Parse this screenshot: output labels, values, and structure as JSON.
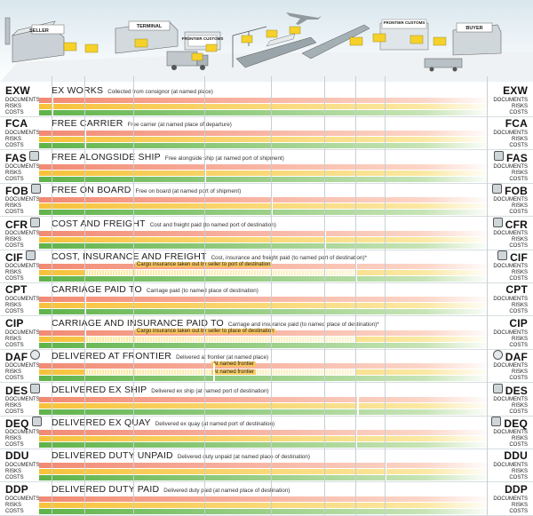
{
  "scene": {
    "seller_label": "SELLER",
    "terminal_label": "TERMINAL",
    "frontier_customs_left": "FRONTIER CUSTOMS",
    "frontier_customs_right": "FRONTIER CUSTOMS",
    "buyer_label": "BUYER"
  },
  "row_labels": {
    "documents": "DOCUMENTS",
    "risks": "RISKS",
    "costs": "COSTS"
  },
  "colors": {
    "documents": "#f28a73",
    "risks": "#f7c23a",
    "costs": "#5fb34a",
    "box": "#f6d12a"
  },
  "terms": [
    {
      "code": "EXW",
      "name": "EX WORKS",
      "desc": "Collected from consignor (at named place)",
      "badge": "",
      "note": ""
    },
    {
      "code": "FCA",
      "name": "FREE CARRIER",
      "desc": "Free carrier (at named place of departure)",
      "badge": "",
      "note": ""
    },
    {
      "code": "FAS",
      "name": "FREE ALONGSIDE SHIP",
      "desc": "Free alongside ship (at named port of shipment)",
      "badge": "sea",
      "note": ""
    },
    {
      "code": "FOB",
      "name": "FREE ON BOARD",
      "desc": "Free on board (at named port of shipment)",
      "badge": "sea",
      "note": ""
    },
    {
      "code": "CFR",
      "name": "COST AND FREIGHT",
      "desc": "Cost and freight paid (to named port of destination)",
      "badge": "sea",
      "note": ""
    },
    {
      "code": "CIF",
      "name": "COST, INSURANCE AND FREIGHT",
      "desc": "Cost, insurance and freight paid (to named port of destination)*",
      "badge": "sea",
      "note": "Cargo insurance taken out by seller to port of destination"
    },
    {
      "code": "CPT",
      "name": "CARRIAGE PAID TO",
      "desc": "Carriage paid (to named place of destination)",
      "badge": "",
      "note": ""
    },
    {
      "code": "CIP",
      "name": "CARRIAGE AND INSURANCE PAID TO",
      "desc": "Carriage and insurance paid (to named place of destination)*",
      "badge": "",
      "note": "Cargo insurance taken out by seller to place of destination"
    },
    {
      "code": "DAF",
      "name": "DELIVERED AT FRONTIER",
      "desc": "Delivered at frontier (at named place)",
      "badge": "circle",
      "note": "At named frontier",
      "note2": "At named frontier"
    },
    {
      "code": "DES",
      "name": "DELIVERED EX SHIP",
      "desc": "Delivered ex ship (at named port of destination)",
      "badge": "sea",
      "note": ""
    },
    {
      "code": "DEQ",
      "name": "DELIVERED EX QUAY",
      "desc": "Delivered ex quay (at named port of destination)",
      "badge": "sea",
      "note": ""
    },
    {
      "code": "DDU",
      "name": "DELIVERED DUTY UNPAID",
      "desc": "Delivered duty unpaid (at named place of destination)",
      "badge": "",
      "note": ""
    },
    {
      "code": "DDP",
      "name": "DELIVERED DUTY PAID",
      "desc": "Delivered duty paid (at named place of destination)",
      "badge": "",
      "note": ""
    }
  ]
}
